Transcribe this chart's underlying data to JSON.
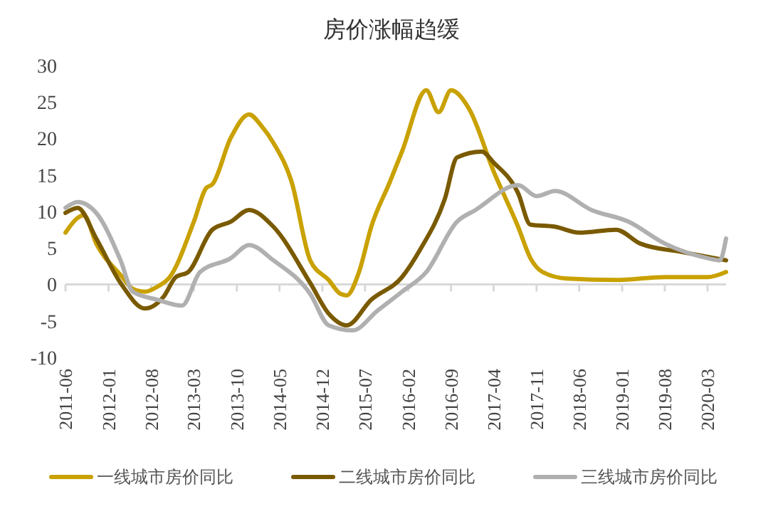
{
  "chart_data": {
    "type": "line",
    "title": "房价涨幅趋缓",
    "xlim": [
      "2011-06",
      "2020-06"
    ],
    "xticks": [
      {
        "value": "2011-06",
        "label": "2011-06"
      },
      {
        "value": "2012-01",
        "label": "2012-01"
      },
      {
        "value": "2012-08",
        "label": "2012-08"
      },
      {
        "value": "2013-03",
        "label": "2013-03"
      },
      {
        "value": "2013-10",
        "label": "2013-10"
      },
      {
        "value": "2014-05",
        "label": "2014-05"
      },
      {
        "value": "2014-12",
        "label": "2014-12"
      },
      {
        "value": "2015-07",
        "label": "2015-07"
      },
      {
        "value": "2016-02",
        "label": "2016-02"
      },
      {
        "value": "2016-09",
        "label": "2016-09"
      },
      {
        "value": "2017-04",
        "label": "2017-04"
      },
      {
        "value": "2017-11",
        "label": "2017-11"
      },
      {
        "value": "2018-06",
        "label": "2018-06"
      },
      {
        "value": "2019-01",
        "label": "2019-01"
      },
      {
        "value": "2019-08",
        "label": "2019-08"
      },
      {
        "value": "2020-03",
        "label": "2020-03"
      }
    ],
    "ylim": [
      -10,
      30
    ],
    "yticks": [
      -10,
      -5,
      0,
      5,
      10,
      15,
      20,
      25,
      30
    ],
    "legend": "bottom",
    "marker": "none",
    "line_style": "solid",
    "series": [
      {
        "name": "一线城市房价同比",
        "color": "#c9a100",
        "x": [
          "2011-06",
          "2011-09",
          "2011-11",
          "2012-03",
          "2012-05",
          "2012-07",
          "2012-09",
          "2012-11",
          "2013-03",
          "2013-05",
          "2013-06",
          "2013-09",
          "2013-12",
          "2014-02",
          "2014-04",
          "2014-07",
          "2014-10",
          "2015-01",
          "2015-03",
          "2015-04",
          "2015-06",
          "2015-08",
          "2015-11",
          "2016-01",
          "2016-05",
          "2016-07",
          "2016-09",
          "2016-12",
          "2017-04",
          "2017-08",
          "2017-10",
          "2017-12",
          "2018-04",
          "2018-12",
          "2019-08",
          "2020-03",
          "2020-06"
        ],
        "values": [
          7.1,
          9.5,
          5.6,
          1.3,
          -0.6,
          -1,
          -0.3,
          1,
          8.6,
          13.2,
          13.7,
          20.1,
          23.3,
          21.7,
          19.4,
          14,
          3.3,
          0.6,
          -1.3,
          -1.5,
          1.7,
          7.9,
          14,
          18.2,
          26.6,
          23.6,
          26.6,
          24,
          15.5,
          7.9,
          3.6,
          1.7,
          0.8,
          0.6,
          1,
          1,
          1.7
        ]
      },
      {
        "name": "二线城市房价同比",
        "color": "#7a5a00",
        "x": [
          "2011-06",
          "2011-08",
          "2011-11",
          "2012-03",
          "2012-07",
          "2012-10",
          "2012-12",
          "2013-02",
          "2013-06",
          "2013-09",
          "2013-12",
          "2014-04",
          "2014-10",
          "2015-01",
          "2015-04",
          "2015-08",
          "2016-01",
          "2016-04",
          "2016-08",
          "2016-10",
          "2017-02",
          "2017-04",
          "2017-08",
          "2017-10",
          "2018-02",
          "2018-06",
          "2018-12",
          "2019-04",
          "2019-11",
          "2020-06"
        ],
        "values": [
          9.8,
          10.5,
          6.3,
          0.2,
          -3.3,
          -1.7,
          1,
          1.7,
          7.5,
          8.6,
          10.2,
          7.9,
          0.2,
          -4,
          -5.6,
          -2.1,
          1,
          4.8,
          11.7,
          17.4,
          18.2,
          16.7,
          12.5,
          8.2,
          7.9,
          7.1,
          7.5,
          5.6,
          4.4,
          3.3
        ]
      },
      {
        "name": "三线城市房价同比",
        "color": "#b0b0b0",
        "x": [
          "2011-06",
          "2011-08",
          "2011-11",
          "2012-03",
          "2012-05",
          "2012-09",
          "2013-01",
          "2013-04",
          "2013-09",
          "2013-12",
          "2014-04",
          "2014-10",
          "2015-01",
          "2015-05",
          "2015-09",
          "2016-01",
          "2016-05",
          "2016-10",
          "2017-01",
          "2017-08",
          "2017-11",
          "2018-02",
          "2018-08",
          "2019-02",
          "2019-08",
          "2020-03",
          "2020-05",
          "2020-06"
        ],
        "values": [
          10.5,
          11.3,
          9.8,
          3.3,
          -1,
          -2.1,
          -2.9,
          1.7,
          3.6,
          5.4,
          3.3,
          -1.3,
          -5.6,
          -6.3,
          -3.6,
          -1,
          1.7,
          8.6,
          10.2,
          13.6,
          12.1,
          12.8,
          10.2,
          8.6,
          5.6,
          3.6,
          3.3,
          6.3
        ]
      }
    ]
  }
}
